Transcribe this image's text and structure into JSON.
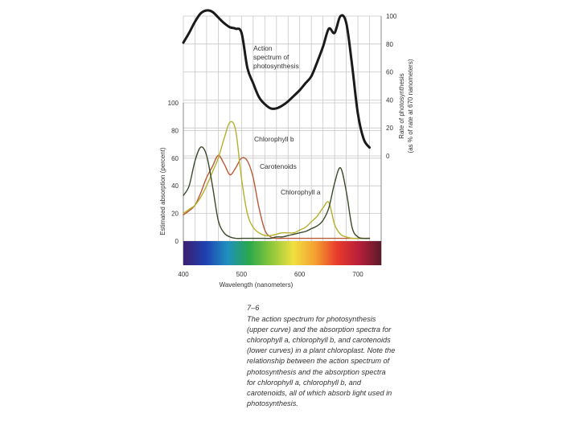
{
  "chart_data": {
    "type": "line",
    "x_axis": {
      "label": "Wavelength (nanometers)",
      "min": 400,
      "max": 740,
      "ticks": [
        400,
        500,
        600,
        700
      ]
    },
    "y_axis_left": {
      "label": "Estimated absorption (percent)",
      "min": 0,
      "max": 100,
      "ticks": [
        0,
        20,
        40,
        60,
        80,
        100
      ]
    },
    "y_axis_right": {
      "label": "Rate of photosynthesis",
      "sublabel": "(as % of rate at 670 nanometers)",
      "min": 0,
      "max": 100,
      "ticks": [
        0,
        20,
        40,
        60,
        80,
        100
      ]
    },
    "grid": true,
    "series": [
      {
        "name": "Action spectrum of photosynthesis",
        "label_lines": [
          "Action",
          "spectrum of",
          "photosynthesis"
        ],
        "axis": "right",
        "color": "#1a1a1a",
        "x": [
          400,
          410,
          420,
          430,
          440,
          450,
          460,
          470,
          480,
          490,
          500,
          510,
          520,
          530,
          540,
          550,
          560,
          570,
          580,
          590,
          600,
          610,
          620,
          630,
          640,
          650,
          660,
          670,
          680,
          690,
          700,
          710,
          720
        ],
        "y": [
          81,
          88,
          96,
          102,
          104,
          103,
          99,
          95,
          92,
          91,
          88,
          63,
          52,
          42,
          37,
          34,
          34,
          36,
          39,
          43,
          47,
          52,
          57,
          67,
          78,
          91,
          88,
          100,
          95,
          65,
          30,
          12,
          6
        ]
      },
      {
        "name": "Chlorophyll b",
        "color": "#b5b02a",
        "x": [
          400,
          410,
          420,
          430,
          440,
          450,
          460,
          470,
          480,
          490,
          500,
          510,
          520,
          530,
          540,
          550,
          560,
          570,
          580,
          590,
          600,
          610,
          620,
          630,
          640,
          650,
          660,
          670,
          680,
          690,
          700,
          710,
          720
        ],
        "y": [
          20,
          23,
          26,
          32,
          40,
          50,
          60,
          74,
          86,
          80,
          45,
          20,
          10,
          6,
          4,
          4,
          5,
          6,
          6,
          6,
          8,
          10,
          14,
          18,
          24,
          28,
          12,
          5,
          3,
          2,
          2,
          2,
          2
        ]
      },
      {
        "name": "Carotenoids",
        "color": "#b85a36",
        "x": [
          400,
          410,
          420,
          430,
          440,
          450,
          460,
          470,
          480,
          490,
          500,
          510,
          520,
          530,
          540,
          550,
          560,
          570,
          580,
          590,
          600,
          610,
          620,
          630,
          640,
          650,
          660,
          670,
          680,
          690,
          700,
          710,
          720
        ],
        "y": [
          19,
          22,
          26,
          35,
          46,
          54,
          62,
          56,
          48,
          53,
          60,
          58,
          46,
          24,
          8,
          3,
          2,
          2,
          2,
          2,
          2,
          2,
          2,
          2,
          2,
          2,
          2,
          2,
          2,
          2,
          2,
          2,
          2
        ]
      },
      {
        "name": "Chlorophyll a",
        "color": "#3a4a2a",
        "x": [
          400,
          410,
          420,
          430,
          440,
          450,
          460,
          470,
          480,
          490,
          500,
          510,
          520,
          530,
          540,
          550,
          560,
          570,
          580,
          590,
          600,
          610,
          620,
          630,
          640,
          650,
          660,
          670,
          680,
          690,
          700,
          710,
          720
        ],
        "y": [
          33,
          40,
          58,
          68,
          62,
          40,
          15,
          6,
          3,
          2,
          2,
          2,
          2,
          2,
          2,
          2,
          3,
          3,
          4,
          5,
          6,
          7,
          9,
          11,
          15,
          24,
          42,
          53,
          36,
          10,
          3,
          2,
          2
        ]
      }
    ]
  },
  "caption": {
    "figure_number": "7–6",
    "lines": [
      "The action spectrum for photosynthesis",
      "(upper curve) and the absorption spectra for",
      "chlorophyll a, chlorophyll b, and carotenoids",
      "(lower curves) in a plant chloroplast. Note the",
      "relationship between the action spectrum of",
      "photosynthesis and the absorption spectra",
      "for chlorophyll a, chlorophyll b, and",
      "carotenoids, all of which absorb light used in",
      "photosynthesis."
    ]
  },
  "colors": {
    "spectrum_stops": [
      "#3c1f6e",
      "#1f3fb0",
      "#1f8fc0",
      "#2aa84a",
      "#8cc83a",
      "#f0e040",
      "#f4a030",
      "#e83a2a",
      "#b81f3a",
      "#5a1a2a"
    ]
  }
}
